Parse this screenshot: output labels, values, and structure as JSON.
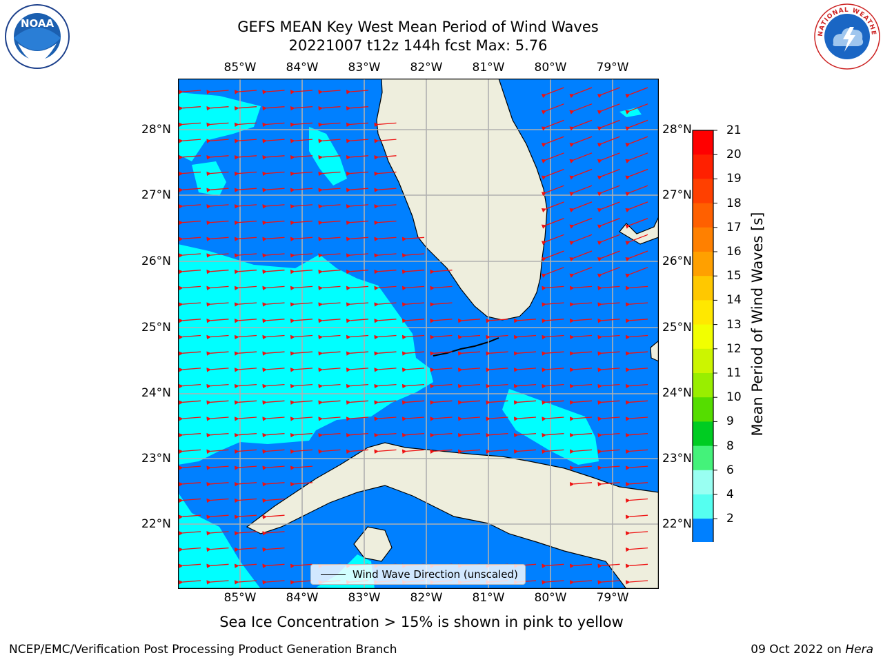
{
  "title": {
    "line1": "GEFS MEAN Key West Mean Period of Wind Waves",
    "line2": "20221007 t12z 144h fcst   Max: 5.76"
  },
  "axes": {
    "lon_labels": [
      "85°W",
      "84°W",
      "83°W",
      "82°W",
      "81°W",
      "80°W",
      "79°W"
    ],
    "lat_labels": [
      "28°N",
      "27°N",
      "26°N",
      "25°N",
      "24°N",
      "23°N",
      "22°N"
    ],
    "lon_range": [
      -86.0,
      -78.3
    ],
    "lat_range": [
      21.05,
      28.75
    ]
  },
  "legend": {
    "label": "Wind Wave Direction (unscaled)"
  },
  "colorbar": {
    "title": "Mean Period of Wind Waves [s]",
    "ticks": [
      "21",
      "20",
      "19",
      "18",
      "17",
      "16",
      "15",
      "14",
      "13",
      "12",
      "11",
      "10",
      "9",
      "8",
      "6",
      "4",
      "2"
    ],
    "colors": [
      "#ff0000",
      "#ff2000",
      "#ff4000",
      "#ff6000",
      "#ff8000",
      "#ffa000",
      "#ffc800",
      "#ffe800",
      "#f2ff00",
      "#ccf500",
      "#99ee00",
      "#55dd00",
      "#00cc22",
      "#44f27a",
      "#99fff2",
      "#55fff0",
      "#00ffff",
      "#0080ff",
      "#0000e0"
    ]
  },
  "map_colors": {
    "period_2_4": "#0080ff",
    "period_4_6": "#00ffff",
    "land": "#eeeedd",
    "arrows": "#ee1111",
    "grid": "#b0b0b0"
  },
  "caption": "Sea Ice Concentration > 15% is shown in pink to yellow",
  "footer": {
    "left": "NCEP/EMC/Verification Post Processing Product Generation Branch",
    "date": "09 Oct 2022 on ",
    "host": "Hera"
  },
  "logos": {
    "left": "NOAA",
    "right": "NATIONAL WEATHER SERVICE"
  }
}
